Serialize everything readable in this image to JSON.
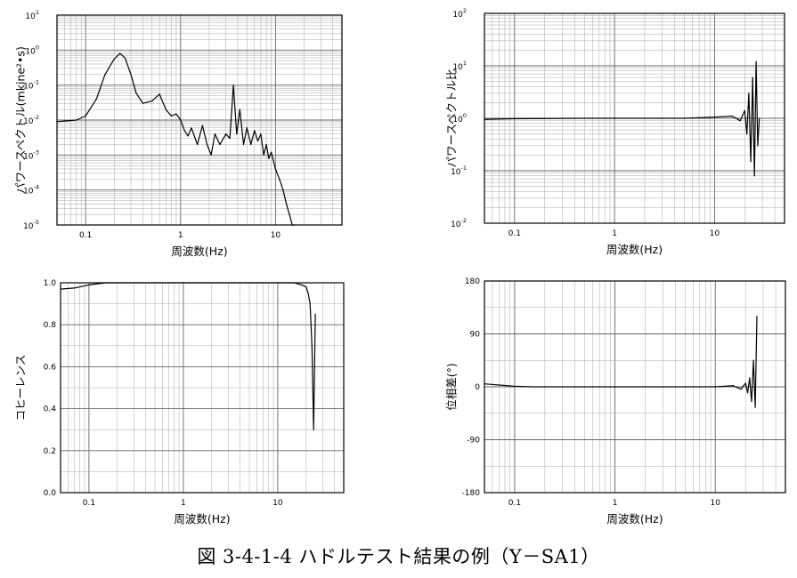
{
  "caption": "図 3-4-1-4 ハドルテスト結果の例（Y－SA1）",
  "chart_data": [
    {
      "id": "power-spectrum",
      "type": "line",
      "xlabel": "周波数(Hz)",
      "ylabel": "パワースペクトル(mkine²•s)",
      "xscale": "log",
      "yscale": "log",
      "xlim": [
        0.05,
        50
      ],
      "ylim": [
        1e-05,
        10
      ],
      "grid": true,
      "xtick_labels": [
        "0.1",
        "1",
        "10"
      ],
      "ytick_labels": [
        {
          "base": "10",
          "exp": "-5"
        },
        {
          "base": "10",
          "exp": "-4"
        },
        {
          "base": "10",
          "exp": "-3"
        },
        {
          "base": "10",
          "exp": "-2"
        },
        {
          "base": "10",
          "exp": "-1"
        },
        {
          "base": "10",
          "exp": "0"
        },
        {
          "base": "10",
          "exp": "1"
        }
      ],
      "series": [
        {
          "x": [
            0.05,
            0.08,
            0.1,
            0.13,
            0.16,
            0.2,
            0.23,
            0.26,
            0.3,
            0.34,
            0.4,
            0.5,
            0.6,
            0.7,
            0.8,
            0.9,
            1.0,
            1.1,
            1.2,
            1.3,
            1.5,
            1.7,
            1.9,
            2.1,
            2.3,
            2.6,
            3.0,
            3.3,
            3.6,
            3.9,
            4.2,
            4.6,
            5.0,
            5.5,
            6.0,
            6.5,
            7.0,
            7.5,
            8.0,
            8.5,
            9.0,
            10,
            11,
            12,
            13,
            14,
            15,
            16
          ],
          "y": [
            0.009,
            0.01,
            0.013,
            0.04,
            0.2,
            0.55,
            0.8,
            0.6,
            0.2,
            0.06,
            0.03,
            0.035,
            0.055,
            0.02,
            0.013,
            0.015,
            0.01,
            0.005,
            0.0035,
            0.006,
            0.002,
            0.007,
            0.002,
            0.001,
            0.004,
            0.002,
            0.004,
            0.003,
            0.1,
            0.004,
            0.02,
            0.002,
            0.006,
            0.002,
            0.005,
            0.0025,
            0.004,
            0.001,
            0.002,
            0.0008,
            0.0012,
            0.0004,
            0.0002,
            0.0001,
            4e-05,
            2e-05,
            1e-05,
            1e-05
          ]
        }
      ]
    },
    {
      "id": "power-spectrum-ratio",
      "type": "line",
      "xlabel": "周波数(Hz)",
      "ylabel": "パワースペクトル比",
      "xscale": "log",
      "yscale": "log",
      "xlim": [
        0.05,
        50
      ],
      "ylim": [
        0.01,
        100
      ],
      "grid": true,
      "xtick_labels": [
        "0.1",
        "1",
        "10"
      ],
      "ytick_labels": [
        {
          "base": "10",
          "exp": "-2"
        },
        {
          "base": "10",
          "exp": "-1"
        },
        {
          "base": "10",
          "exp": "0"
        },
        {
          "base": "10",
          "exp": "1"
        },
        {
          "base": "10",
          "exp": "2"
        }
      ],
      "series": [
        {
          "x": [
            0.05,
            0.1,
            0.5,
            1,
            2,
            5,
            10,
            15,
            18,
            20,
            21,
            22,
            23,
            24,
            25,
            26,
            27,
            28
          ],
          "y": [
            0.95,
            0.98,
            1.0,
            1.0,
            1.0,
            1.0,
            1.05,
            1.1,
            0.9,
            1.4,
            0.5,
            3.0,
            0.15,
            6.0,
            0.08,
            12,
            0.3,
            1.0
          ]
        }
      ]
    },
    {
      "id": "coherence",
      "type": "line",
      "xlabel": "周波数(Hz)",
      "ylabel": "コヒーレンス",
      "xscale": "log",
      "yscale": "linear",
      "xlim": [
        0.05,
        50
      ],
      "ylim": [
        0,
        1
      ],
      "grid": true,
      "xtick_labels": [
        "0.1",
        "1",
        "10"
      ],
      "ytick_labels": [
        "0.0",
        "0.2",
        "0.4",
        "0.6",
        "0.8",
        "1.0"
      ],
      "series": [
        {
          "x": [
            0.05,
            0.07,
            0.1,
            0.15,
            0.2,
            1,
            5,
            10,
            15,
            18,
            20,
            21,
            22,
            23,
            24,
            25
          ],
          "y": [
            0.97,
            0.975,
            0.99,
            1.0,
            1.0,
            1.0,
            1.0,
            1.0,
            1.0,
            0.99,
            0.98,
            0.95,
            0.9,
            0.7,
            0.3,
            0.85
          ]
        }
      ]
    },
    {
      "id": "phase-difference",
      "type": "line",
      "xlabel": "周波数(Hz)",
      "ylabel": "位相差(°)",
      "xscale": "log",
      "yscale": "linear",
      "xlim": [
        0.05,
        50
      ],
      "ylim": [
        -180,
        180
      ],
      "grid": true,
      "xtick_labels": [
        "0.1",
        "1",
        "10"
      ],
      "ytick_labels": [
        "-180",
        "-90",
        "0",
        "90",
        "180"
      ],
      "series": [
        {
          "x": [
            0.05,
            0.07,
            0.1,
            0.15,
            0.2,
            1,
            5,
            10,
            15,
            18,
            20,
            21,
            22,
            23,
            24,
            25,
            26
          ],
          "y": [
            5,
            3,
            1,
            0,
            0,
            0,
            0,
            0,
            2,
            -4,
            6,
            -10,
            15,
            -25,
            45,
            -35,
            120
          ]
        }
      ]
    }
  ]
}
